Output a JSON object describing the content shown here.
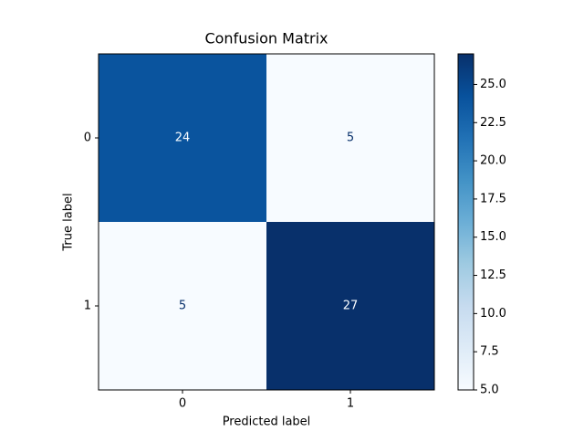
{
  "chart_data": {
    "type": "heatmap",
    "title": "Confusion Matrix",
    "xlabel": "Predicted label",
    "ylabel": "True label",
    "x_categories": [
      "0",
      "1"
    ],
    "y_categories": [
      "0",
      "1"
    ],
    "values": [
      [
        24,
        5
      ],
      [
        5,
        27
      ]
    ],
    "colormap": "Blues",
    "clim": [
      5,
      27
    ],
    "cticks": [
      {
        "value": 5,
        "label": "5.0"
      },
      {
        "value": 7.5,
        "label": "7.5"
      },
      {
        "value": 10,
        "label": "10.0"
      },
      {
        "value": 12.5,
        "label": "12.5"
      },
      {
        "value": 15,
        "label": "15.0"
      },
      {
        "value": 17.5,
        "label": "17.5"
      },
      {
        "value": 20,
        "label": "20.0"
      },
      {
        "value": 22.5,
        "label": "22.5"
      },
      {
        "value": 25,
        "label": "25.0"
      }
    ]
  }
}
